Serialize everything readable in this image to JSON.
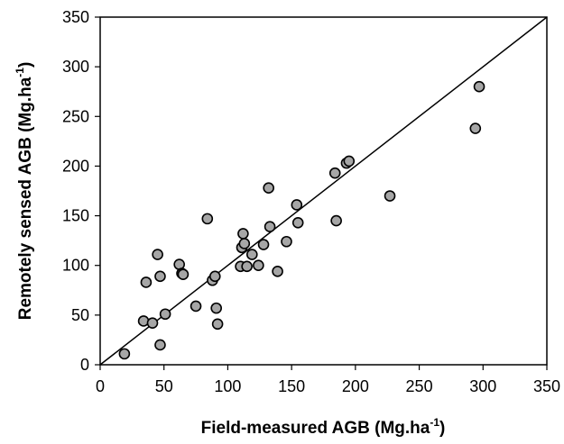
{
  "chart_data": {
    "type": "scatter",
    "xlabel": "Field-measured AGB (Mg.ha",
    "xlabel_sup": "-1",
    "xlabel_suffix": ")",
    "ylabel": "Remotely sensed  AGB (Mg.ha",
    "ylabel_sup": "-1",
    "ylabel_suffix": ")",
    "xlim": [
      0,
      350
    ],
    "ylim": [
      0,
      350
    ],
    "xticks": [
      "0",
      "50",
      "100",
      "150",
      "200",
      "250",
      "300",
      "350"
    ],
    "yticks": [
      "0",
      "50",
      "100",
      "150",
      "200",
      "250",
      "300",
      "350"
    ],
    "grid": false,
    "reference_line": {
      "from": [
        0,
        0
      ],
      "to": [
        350,
        350
      ]
    },
    "marker_color": "#a6a6a6",
    "points": [
      {
        "x": 19,
        "y": 11
      },
      {
        "x": 34,
        "y": 44
      },
      {
        "x": 36,
        "y": 83
      },
      {
        "x": 41,
        "y": 42
      },
      {
        "x": 45,
        "y": 111
      },
      {
        "x": 47,
        "y": 20
      },
      {
        "x": 47,
        "y": 89
      },
      {
        "x": 51,
        "y": 51
      },
      {
        "x": 62,
        "y": 101
      },
      {
        "x": 64,
        "y": 92
      },
      {
        "x": 65,
        "y": 91
      },
      {
        "x": 75,
        "y": 59
      },
      {
        "x": 84,
        "y": 147
      },
      {
        "x": 88,
        "y": 85
      },
      {
        "x": 90,
        "y": 89
      },
      {
        "x": 91,
        "y": 57
      },
      {
        "x": 92,
        "y": 41
      },
      {
        "x": 110,
        "y": 99
      },
      {
        "x": 111,
        "y": 118
      },
      {
        "x": 112,
        "y": 132
      },
      {
        "x": 113,
        "y": 122
      },
      {
        "x": 115,
        "y": 99
      },
      {
        "x": 119,
        "y": 111
      },
      {
        "x": 124,
        "y": 100
      },
      {
        "x": 128,
        "y": 121
      },
      {
        "x": 132,
        "y": 178
      },
      {
        "x": 133,
        "y": 139
      },
      {
        "x": 139,
        "y": 94
      },
      {
        "x": 146,
        "y": 124
      },
      {
        "x": 154,
        "y": 161
      },
      {
        "x": 155,
        "y": 143
      },
      {
        "x": 184,
        "y": 193
      },
      {
        "x": 185,
        "y": 145
      },
      {
        "x": 193,
        "y": 203
      },
      {
        "x": 195,
        "y": 205
      },
      {
        "x": 227,
        "y": 170
      },
      {
        "x": 294,
        "y": 238
      },
      {
        "x": 297,
        "y": 280
      }
    ]
  }
}
